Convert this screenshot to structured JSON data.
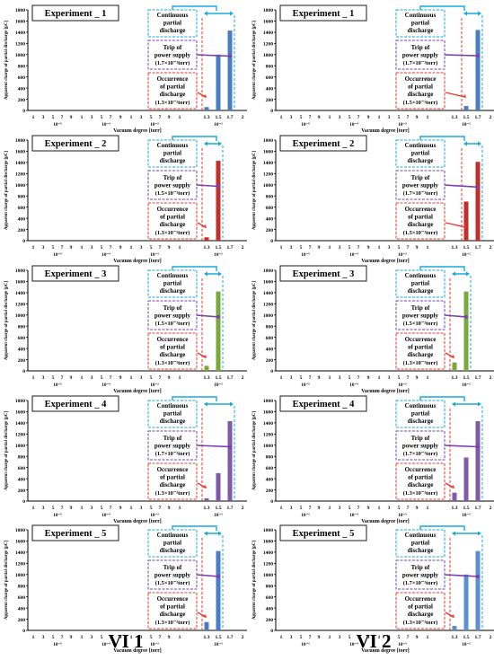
{
  "columns": [
    {
      "label": "VI 1"
    },
    {
      "label": "VI 2"
    }
  ],
  "shared": {
    "ylabel": "Apparent charge of partial discharge [pC]",
    "xlabel": "Vacuum degree [torr]",
    "ylim": [
      0,
      1800
    ],
    "yticks": [
      "0",
      "200",
      "400",
      "600",
      "800",
      "1000",
      "1200",
      "1400",
      "1600",
      "1800"
    ],
    "xticks": [
      "1",
      "3",
      "5",
      "7",
      "9",
      "1",
      "3",
      "5",
      "7",
      "9",
      "1",
      "3",
      "5",
      "7",
      "9",
      "1",
      "1.3",
      "1.5",
      "1.7",
      "2"
    ],
    "decades": [
      "10⁻⁵",
      "10⁻⁴",
      "10⁻³",
      "10⁻²"
    ],
    "ann_continuous": [
      "Continuous",
      "partial",
      "discharge"
    ],
    "ann_trip": [
      "Trip of",
      "power supply"
    ],
    "ann_occ": [
      "Occurrence",
      "of partial",
      "discharge"
    ],
    "colors": {
      "cyan": "#19a9dd",
      "purple": "#7b3fb0",
      "red": "#e53a2e"
    }
  },
  "chart_data": [
    {
      "type": "bar",
      "title": "Experiment _ 1",
      "color": "#4a7ec4",
      "x": [
        1.3,
        1.5,
        1.7
      ],
      "values": [
        60,
        1000,
        1430
      ],
      "trip": "(1.7×10⁻²torr)",
      "occ": "(1.3×10⁻²torr)"
    },
    {
      "type": "bar",
      "title": "Experiment _ 1",
      "color": "#4a7ec4",
      "x": [
        1.5,
        1.7
      ],
      "values": [
        80,
        1440
      ],
      "trip": "(1.7×10⁻²torr)",
      "occ": "(1.5×10⁻²torr)"
    },
    {
      "type": "bar",
      "title": "Experiment _ 2",
      "color": "#c0302a",
      "x": [
        1.3,
        1.5
      ],
      "values": [
        60,
        1430
      ],
      "trip": "(1.5×10⁻²torr)",
      "occ": "(1.3×10⁻²torr)"
    },
    {
      "type": "bar",
      "title": "Experiment _ 2",
      "color": "#c0302a",
      "x": [
        1.5,
        1.7
      ],
      "values": [
        700,
        1410
      ],
      "trip": "(1.7×10⁻²torr)",
      "occ": "(1.5×10⁻²torr)"
    },
    {
      "type": "bar",
      "title": "Experiment _ 3",
      "color": "#7aa83a",
      "x": [
        1.3,
        1.5
      ],
      "values": [
        90,
        1420
      ],
      "trip": "(1.5×10⁻²torr)",
      "occ": "(1.3×10⁻²torr)"
    },
    {
      "type": "bar",
      "title": "Experiment _ 3",
      "color": "#7aa83a",
      "x": [
        1.3,
        1.5
      ],
      "values": [
        150,
        1420
      ],
      "trip": "(1.5×10⁻²torr)",
      "occ": "(1.3×10⁻²torr)"
    },
    {
      "type": "bar",
      "title": "Experiment _ 4",
      "color": "#7f5aa8",
      "x": [
        1.3,
        1.5,
        1.7
      ],
      "values": [
        50,
        500,
        1430
      ],
      "trip": "(1.7×10⁻²torr)",
      "occ": "(1.3×10⁻²torr)"
    },
    {
      "type": "bar",
      "title": "Experiment _ 4",
      "color": "#7f5aa8",
      "x": [
        1.3,
        1.5,
        1.7
      ],
      "values": [
        150,
        780,
        1430
      ],
      "trip": "(1.7×10⁻²torr)",
      "occ": "(1.3×10⁻²torr)"
    },
    {
      "type": "bar",
      "title": "Experiment _ 5",
      "color": "#4a7ec4",
      "x": [
        1.3,
        1.5
      ],
      "values": [
        150,
        1420
      ],
      "trip": "(1.5×10⁻²torr)",
      "occ": "(1.3×10⁻²torr)"
    },
    {
      "type": "bar",
      "title": "Experiment _ 5",
      "color": "#5b8fd0",
      "x": [
        1.3,
        1.5,
        1.7
      ],
      "values": [
        80,
        1000,
        1420
      ],
      "trip": "(1.7×10⁻²torr)",
      "occ": "(1.3×10⁻²torr)"
    }
  ]
}
